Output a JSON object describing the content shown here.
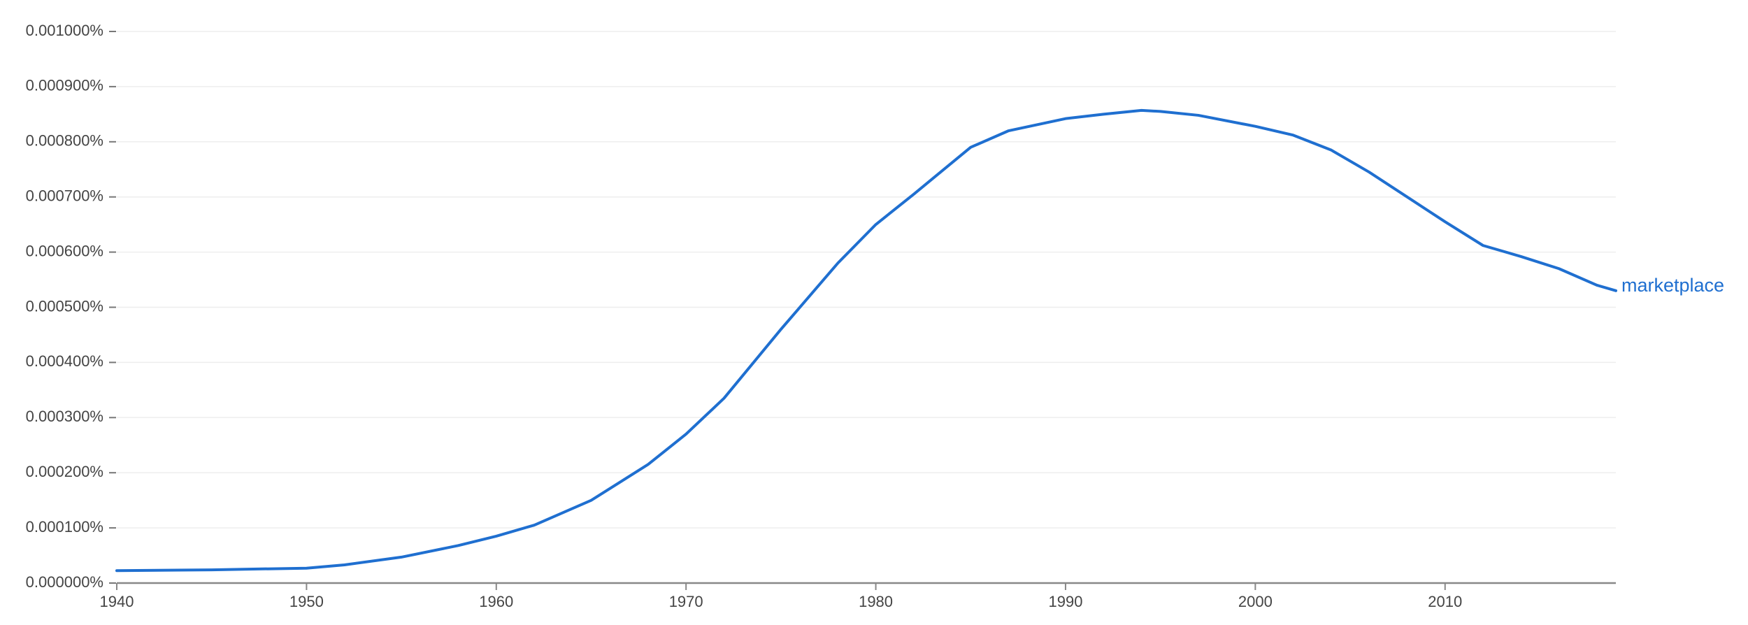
{
  "chart_data": {
    "type": "line",
    "x": [
      1940,
      1945,
      1950,
      1952,
      1955,
      1958,
      1960,
      1962,
      1965,
      1968,
      1970,
      1972,
      1975,
      1978,
      1980,
      1982,
      1985,
      1987,
      1990,
      1992,
      1994,
      1995,
      1997,
      2000,
      2002,
      2004,
      2006,
      2008,
      2010,
      2012,
      2014,
      2016,
      2018,
      2019
    ],
    "series": [
      {
        "name": "marketplace",
        "color": "#1f6fd0",
        "values": [
          2.25e-05,
          2.4e-05,
          2.7e-05,
          3.3e-05,
          4.7e-05,
          6.8e-05,
          8.5e-05,
          0.000105,
          0.00015,
          0.000215,
          0.00027,
          0.000335,
          0.00046,
          0.00058,
          0.00065,
          0.000705,
          0.00079,
          0.00082,
          0.000842,
          0.00085,
          0.000857,
          0.000855,
          0.000848,
          0.000828,
          0.000812,
          0.000785,
          0.000745,
          0.0007,
          0.000655,
          0.000612,
          0.000592,
          0.00057,
          0.00054,
          0.00053
        ]
      }
    ],
    "xlim": [
      1940,
      2019
    ],
    "xticks": [
      1940,
      1950,
      1960,
      1970,
      1980,
      1990,
      2000,
      2010
    ],
    "ylim": [
      0,
      0.001
    ],
    "yticks": [
      {
        "value": 0,
        "label": "0.000000%"
      },
      {
        "value": 0.0001,
        "label": "0.000100%"
      },
      {
        "value": 0.0002,
        "label": "0.000200%"
      },
      {
        "value": 0.0003,
        "label": "0.000300%"
      },
      {
        "value": 0.0004,
        "label": "0.000400%"
      },
      {
        "value": 0.0005,
        "label": "0.000500%"
      },
      {
        "value": 0.0006,
        "label": "0.000600%"
      },
      {
        "value": 0.0007,
        "label": "0.000700%"
      },
      {
        "value": 0.0008,
        "label": "0.000800%"
      },
      {
        "value": 0.0009,
        "label": "0.000900%"
      },
      {
        "value": 0.001,
        "label": "0.001000%"
      }
    ],
    "grid": true
  }
}
